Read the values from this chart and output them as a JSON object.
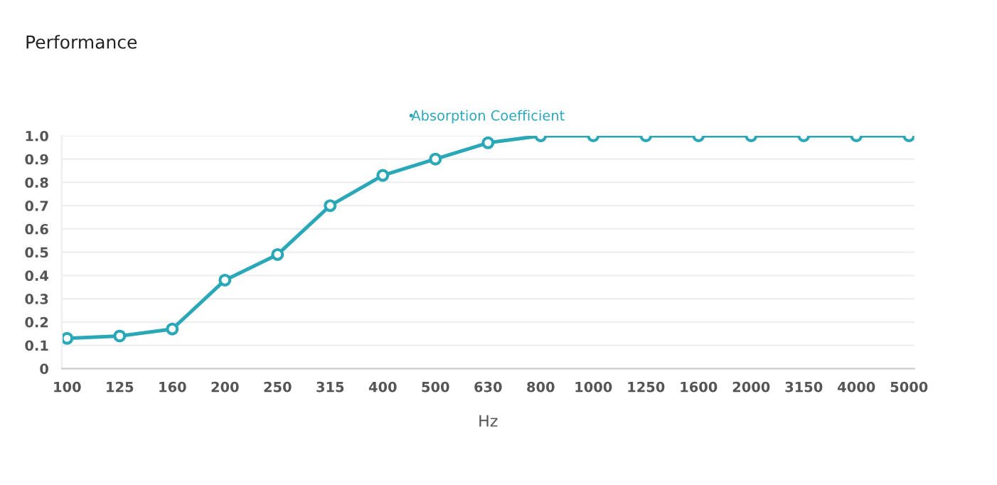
{
  "chart_data": {
    "type": "line",
    "title": "Performance",
    "xlabel": "Hz",
    "categories": [
      "100",
      "125",
      "160",
      "200",
      "250",
      "315",
      "400",
      "500",
      "630",
      "800",
      "1000",
      "1250",
      "1600",
      "2000",
      "3150",
      "4000",
      "5000"
    ],
    "series": [
      {
        "name": "Absorption Coefficient",
        "color": "#2aa8b8",
        "values": [
          0.13,
          0.14,
          0.17,
          0.38,
          0.49,
          0.7,
          0.83,
          0.9,
          0.97,
          1.0,
          1.0,
          1.0,
          1.0,
          1.0,
          1.0,
          1.0,
          1.0
        ]
      }
    ],
    "ylim": [
      0,
      1.0
    ],
    "yticks": [
      0,
      0.1,
      0.2,
      0.3,
      0.4,
      0.5,
      0.6,
      0.7,
      0.8,
      0.9,
      {
        "value": 1.0,
        "label": "1.0"
      }
    ],
    "grid": "y",
    "legend": "top",
    "marker": "circle",
    "line_style": "solid"
  }
}
